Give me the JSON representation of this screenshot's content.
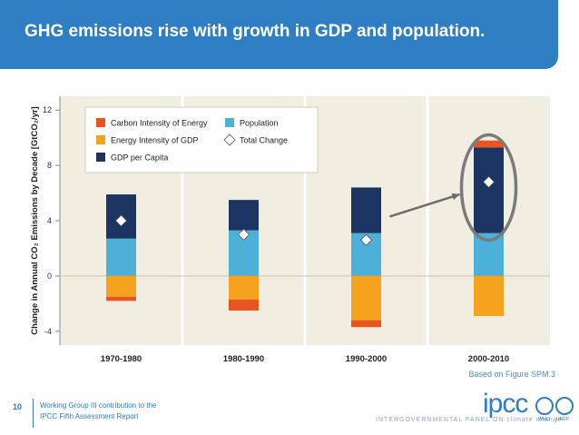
{
  "header": {
    "title": "GHG emissions rise with growth in GDP and population."
  },
  "chart_data": {
    "type": "bar",
    "stacked": true,
    "categories": [
      "1970-1980",
      "1980-1990",
      "1990-2000",
      "2000-2010"
    ],
    "series": [
      {
        "name": "Population",
        "color": "#4cb0d8",
        "values": [
          2.7,
          3.3,
          3.1,
          3.1
        ]
      },
      {
        "name": "GDP per Capita",
        "color": "#1c3461",
        "values": [
          3.2,
          2.2,
          3.3,
          6.2
        ]
      },
      {
        "name": "Energy Intensity of GDP",
        "color": "#f5a21e",
        "values": [
          -1.5,
          -1.7,
          -3.2,
          -2.9
        ]
      },
      {
        "name": "Carbon Intensity of Energy",
        "color": "#e8551f",
        "values": [
          -0.3,
          -0.8,
          -0.5,
          0.5
        ]
      }
    ],
    "total_change": {
      "name": "Total Change",
      "values": [
        4.0,
        3.0,
        2.6,
        6.8
      ]
    },
    "legend": {
      "items": [
        {
          "label": "Carbon Intensity of Energy",
          "icon": "square",
          "color": "#e8551f"
        },
        {
          "label": "Population",
          "icon": "square",
          "color": "#4cb0d8"
        },
        {
          "label": "Energy Intensity of GDP",
          "icon": "square",
          "color": "#f5a21e"
        },
        {
          "label": "Total Change",
          "icon": "diamond",
          "color": "#ffffff"
        },
        {
          "label": "GDP per Capita",
          "icon": "square",
          "color": "#1c3461"
        }
      ],
      "placement": "top-left"
    },
    "ylabel": "Change in Annual CO₂ Emissions by Decade [GtCO₂/yr]",
    "yticks": [
      -4,
      0,
      4,
      8,
      12
    ],
    "ylim": [
      -5,
      13
    ],
    "grid": false,
    "annotation": "highlight 2000-2010"
  },
  "source_note": "Based on Figure SPM.3",
  "footer": {
    "page_number": "10",
    "line1": "Working Group III contribution to the",
    "line2": "IPCC Fifth Assessment Report"
  },
  "logos": {
    "ipcc": "ipcc",
    "tagline": "INTERGOVERNMENTAL PANEL ON climate change",
    "wmo": "WMO",
    "unep": "UNEP"
  }
}
